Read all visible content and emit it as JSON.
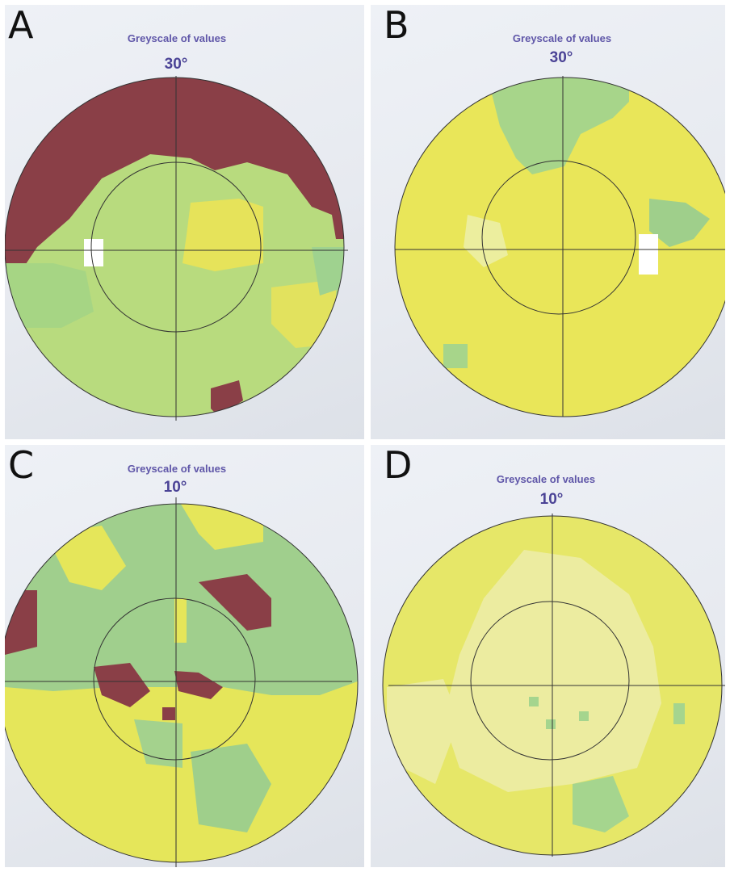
{
  "panels": [
    {
      "letter": "A",
      "caption": "Greyscale of values",
      "degree": "30°"
    },
    {
      "letter": "B",
      "caption": "Greyscale of values",
      "degree": "30°"
    },
    {
      "letter": "C",
      "caption": "Greyscale of values",
      "degree": "10°"
    },
    {
      "letter": "D",
      "caption": "Greyscale of values",
      "degree": "10°"
    }
  ],
  "colors": {
    "dark_red": "#8b3e46",
    "green": "#b6da7c",
    "yellow": "#e9e557",
    "teal_green": "#9ccb8d",
    "pale_yellow": "#edee9a",
    "white_gap": "#ffffff"
  }
}
